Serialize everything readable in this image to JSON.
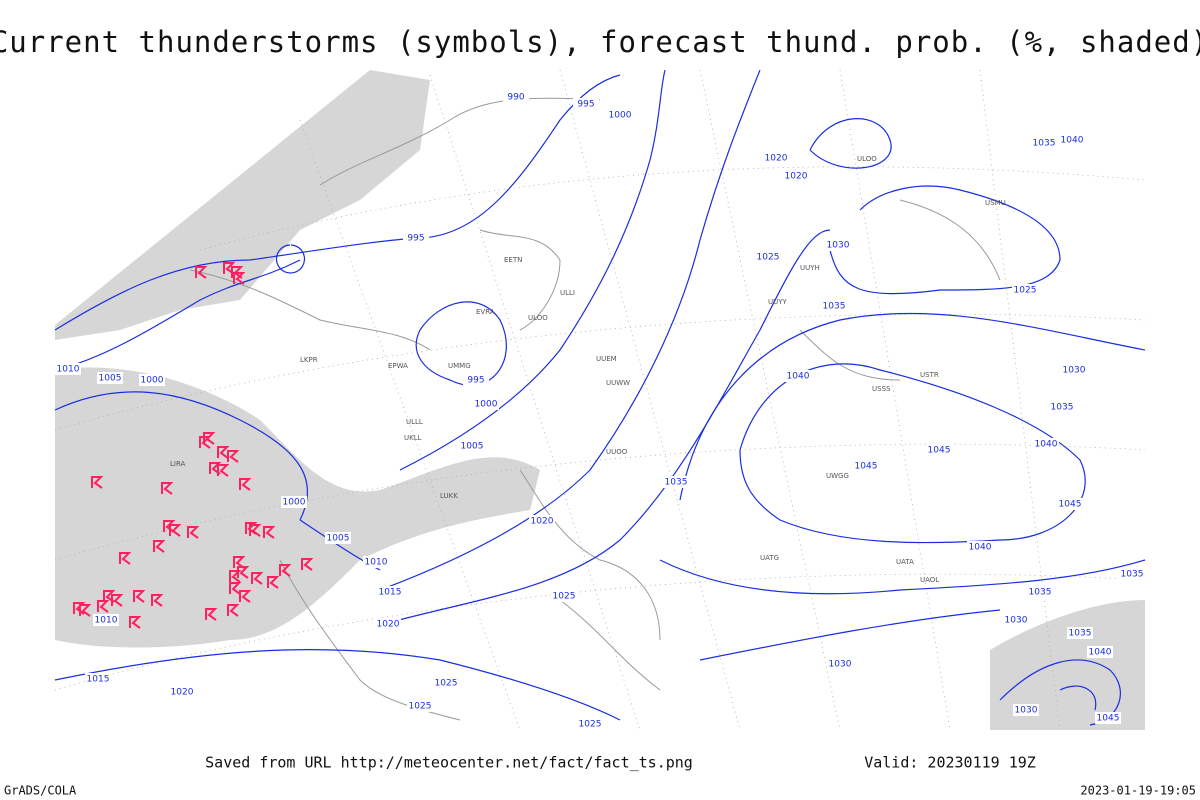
{
  "header": {
    "title": "Current thunderstorms (symbols), forecast thund. prob. (%, shaded)"
  },
  "map": {
    "isobar_labels": [
      "990",
      "995",
      "1000",
      "1020",
      "1020",
      "1030",
      "1025",
      "1035",
      "995",
      "1040",
      "995",
      "1000",
      "1005",
      "1010",
      "1005",
      "1000",
      "1000",
      "1005",
      "1010",
      "1015",
      "1020",
      "1020",
      "1025",
      "1035",
      "1045",
      "1045",
      "1040",
      "1035",
      "1030",
      "1030",
      "1035",
      "1040",
      "1025",
      "1035",
      "1040",
      "1015",
      "1020",
      "1025",
      "1025",
      "1025",
      "1010",
      "1030",
      "1035",
      "1040",
      "1045",
      "1045",
      "1035",
      "1030"
    ],
    "station_labels": [
      "LIRA",
      "LKPR",
      "EPWA",
      "UMMG",
      "EVRA",
      "EETN",
      "ULLI",
      "ULOO",
      "UUEM",
      "UUWW",
      "UUYY",
      "ULLL",
      "UKLL",
      "LUKK",
      "UUOO",
      "UWGG",
      "UATG",
      "UATA",
      "UAOL",
      "USSS",
      "USTR",
      "USMU",
      "ULOO",
      "UUYH"
    ]
  },
  "footer": {
    "source": "Saved from URL http://meteocenter.net/fact/fact_ts.png",
    "valid": "Valid: 20230119 19Z",
    "credit": "GrADS/COLA",
    "timestamp": "2023-01-19-19:05"
  }
}
